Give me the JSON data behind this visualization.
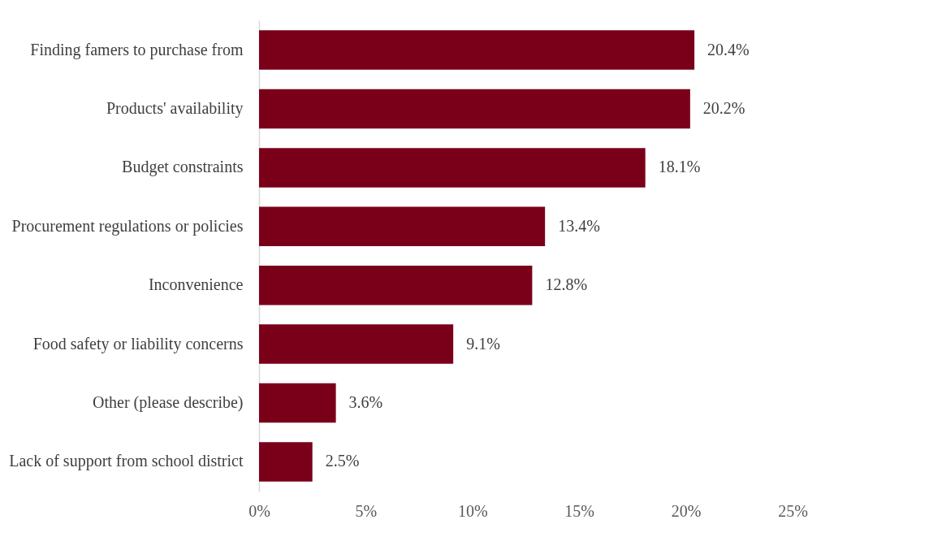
{
  "chart_data": {
    "type": "bar",
    "orientation": "horizontal",
    "categories": [
      "Finding famers to purchase from",
      "Products' availability",
      "Budget constraints",
      "Procurement regulations or policies",
      "Inconvenience",
      "Food safety or liability concerns",
      "Other (please describe)",
      "Lack of support from school district"
    ],
    "values": [
      20.4,
      20.2,
      18.1,
      13.4,
      12.8,
      9.1,
      3.6,
      2.5
    ],
    "value_labels": [
      "20.4%",
      "20.2%",
      "18.1%",
      "13.4%",
      "12.8%",
      "9.1%",
      "3.6%",
      "2.5%"
    ],
    "color": "#7a0019",
    "xlim": [
      0,
      25
    ],
    "xticks": [
      {
        "value": 0,
        "label": "0%"
      },
      {
        "value": 5,
        "label": "5%"
      },
      {
        "value": 10,
        "label": "10%"
      },
      {
        "value": 15,
        "label": "15%"
      },
      {
        "value": 20,
        "label": "20%"
      },
      {
        "value": 25,
        "label": "25%"
      }
    ],
    "grid": false
  }
}
